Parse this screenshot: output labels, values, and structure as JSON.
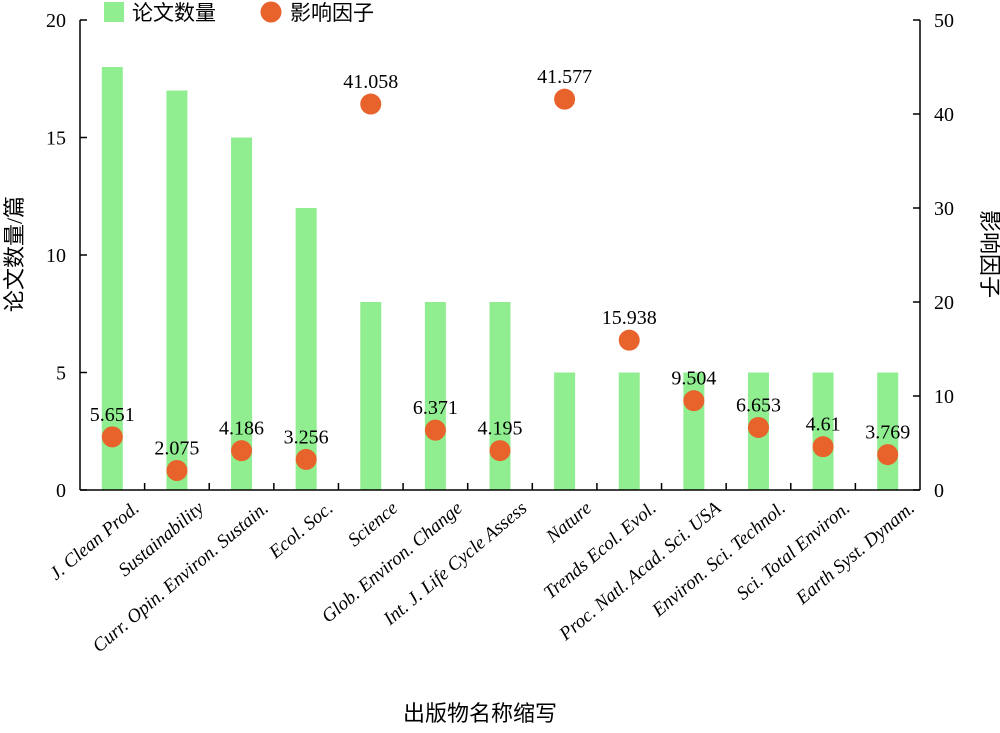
{
  "chart_data": {
    "type": "bar",
    "categories": [
      "J. Clean Prod.",
      "Sustainability",
      "Curr. Opin. Environ. Sustain.",
      "Ecol. Soc.",
      "Science",
      "Glob. Environ. Change",
      "Int. J. Life Cycle Assess",
      "Nature",
      "Trends Ecol. Evol.",
      "Proc. Natl. Acad. Sci. USA",
      "Environ. Sci. Technol.",
      "Sci. Total Environ.",
      "Earth Syst. Dynam."
    ],
    "series": [
      {
        "name": "论文数量",
        "type": "bar",
        "axis": "left",
        "color": "#90ee90",
        "values": [
          18,
          17,
          15,
          12,
          8,
          8,
          8,
          5,
          5,
          5,
          5,
          5,
          5
        ]
      },
      {
        "name": "影响因子",
        "type": "scatter",
        "axis": "right",
        "color": "#e8622c",
        "values": [
          5.651,
          2.075,
          4.186,
          3.256,
          41.058,
          6.371,
          4.195,
          41.577,
          15.938,
          9.504,
          6.653,
          4.61,
          3.769
        ],
        "labels": [
          "5.651",
          "2.075",
          "4.186",
          "3.256",
          "41.058",
          "6.371",
          "4.195",
          "41.577",
          "15.938",
          "9.504",
          "6.653",
          "4.61",
          "3.769"
        ]
      }
    ],
    "xlabel": "出版物名称缩写",
    "ylabel": "论文数量/篇",
    "y2label": "影响因子",
    "ylim": [
      0,
      20
    ],
    "y2lim": [
      0,
      50
    ],
    "yticks": [
      "0",
      "5",
      "10",
      "15",
      "20"
    ],
    "y2ticks": [
      "0",
      "10",
      "20",
      "30",
      "40",
      "50"
    ],
    "legend": {
      "position": "top-left",
      "entries": [
        "论文数量",
        "影响因子"
      ]
    },
    "grid": false
  }
}
